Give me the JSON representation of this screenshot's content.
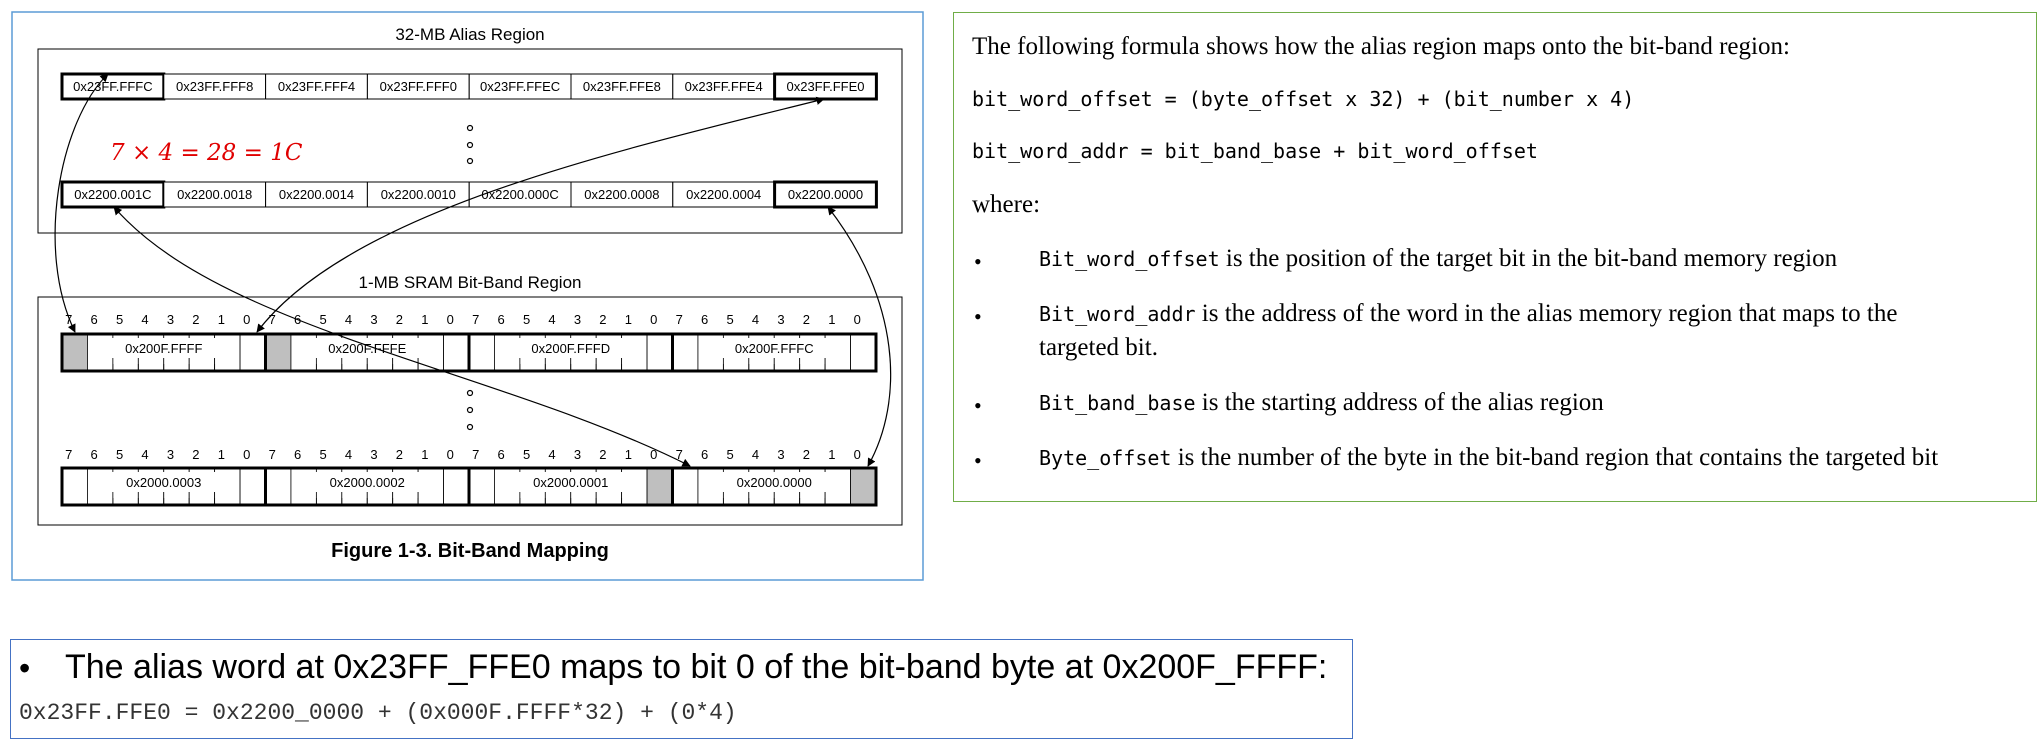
{
  "figure": {
    "alias_region_title": "32-MB Alias Region",
    "sram_region_title": "1-MB SRAM Bit-Band Region",
    "caption": "Figure 1-3. Bit-Band Mapping",
    "annotation": "7 × 4 = 28 = 1C",
    "annotation_color": "#e00000",
    "alias_top_row": [
      "0x23FF.FFFC",
      "0x23FF.FFF8",
      "0x23FF.FFF4",
      "0x23FF.FFF0",
      "0x23FF.FFEC",
      "0x23FF.FFE8",
      "0x23FF.FFE4",
      "0x23FF.FFE0"
    ],
    "alias_bottom_row": [
      "0x2200.001C",
      "0x2200.0018",
      "0x2200.0014",
      "0x2200.0010",
      "0x2200.000C",
      "0x2200.0008",
      "0x2200.0004",
      "0x2200.0000"
    ],
    "sram_top_row": [
      "0x200F.FFFF",
      "0x200F.FFFE",
      "0x200F.FFFD",
      "0x200F.FFFC"
    ],
    "sram_bottom_row": [
      "0x2000.0003",
      "0x2000.0002",
      "0x2000.0001",
      "0x2000.0000"
    ],
    "bit_numbers": [
      "7",
      "6",
      "5",
      "4",
      "3",
      "2",
      "1",
      "0"
    ],
    "ellipsis": "•"
  },
  "explanation": {
    "intro": "The following formula shows how the alias region maps onto the bit-band region:",
    "formula1": "bit_word_offset = (byte_offset x 32) + (bit_number x 4)",
    "formula2": "bit_word_addr = bit_band_base + bit_word_offset",
    "where": "where:",
    "bullets": [
      {
        "term": "Bit_word_offset",
        "text": " is the position of the target bit in the bit-band memory region"
      },
      {
        "term": "Bit_word_addr",
        "text": " is the address of the word in the alias memory region that maps to the",
        "text2": "targeted bit."
      },
      {
        "term": "Bit_band_base",
        "text": " is the starting address of the alias region"
      },
      {
        "term": "Byte_offset",
        "text": " is the number of the byte in the bit-band region that contains the targeted bit"
      }
    ]
  },
  "example": {
    "bullet": "•",
    "statement": "The alias word at 0x23FF_FFE0 maps to bit 0 of the bit-band byte at 0x200F_FFFF:",
    "equation": "0x23FF.FFE0 = 0x2200_0000 + (0x000F.FFFF*32) + (0*4)"
  },
  "colors": {
    "figure_border": "#5b9bd5",
    "right_border": "#70ad47",
    "example_border": "#4472c4",
    "shaded_bit": "#bfbfbf"
  }
}
